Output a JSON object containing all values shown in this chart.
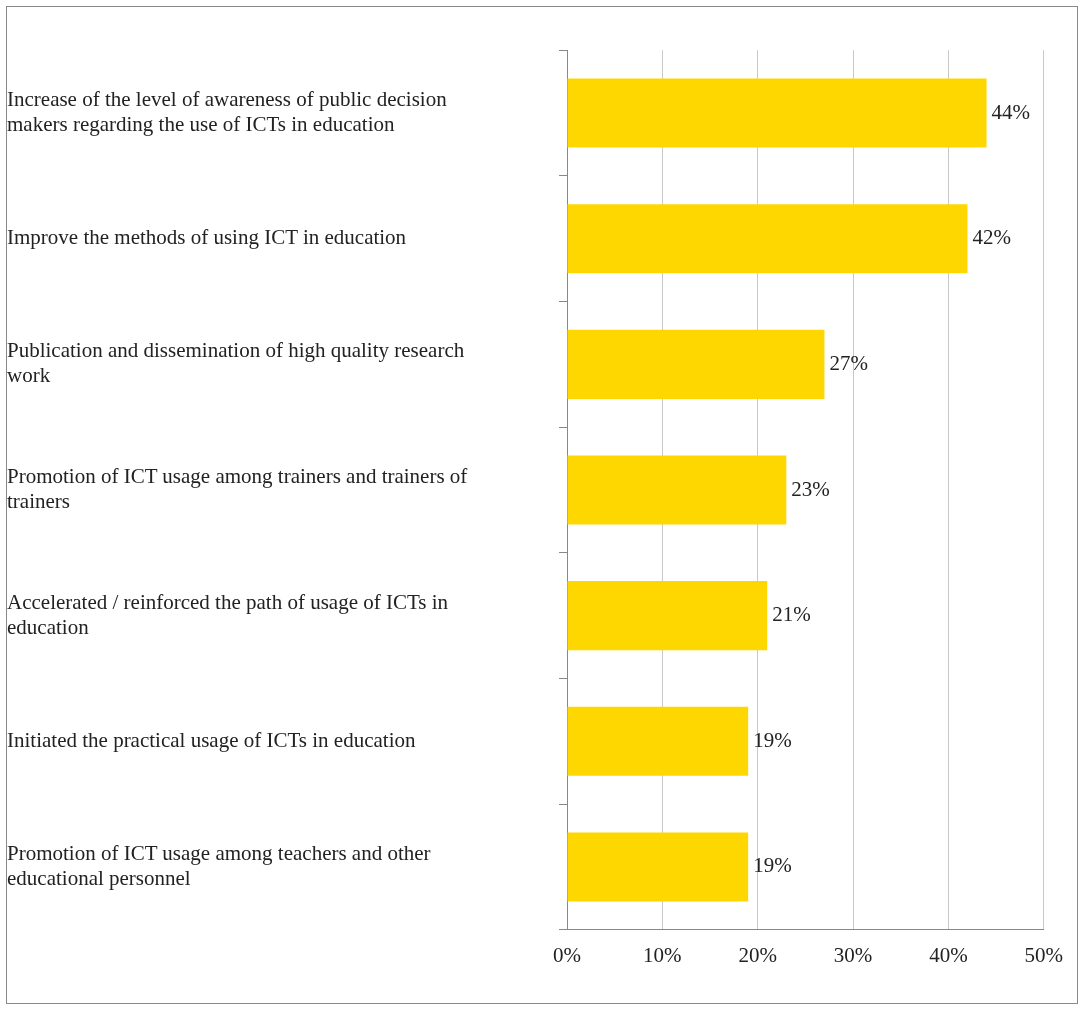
{
  "chart_data": {
    "type": "bar",
    "orientation": "horizontal",
    "categories": [
      "Increase of the level of awareness of public decision makers regarding the use of ICTs in education",
      "Improve the methods of using ICT in education",
      "Publication and dissemination of high quality research work",
      "Promotion of ICT usage among trainers and trainers of trainers",
      "Accelerated / reinforced the path of usage of ICTs in education",
      "Initiated the practical usage of ICTs in education",
      "Promotion of ICT usage among teachers and other educational personnel"
    ],
    "values": [
      44,
      42,
      27,
      23,
      21,
      19,
      19
    ],
    "value_labels": [
      "44%",
      "42%",
      "27%",
      "23%",
      "21%",
      "19%",
      "19%"
    ],
    "color": "#ffd700",
    "xlim": [
      0,
      50
    ],
    "xticks": [
      {
        "value": 0,
        "label": "0%"
      },
      {
        "value": 10,
        "label": "10%"
      },
      {
        "value": 20,
        "label": "20%"
      },
      {
        "value": 30,
        "label": "30%"
      },
      {
        "value": 40,
        "label": "40%"
      },
      {
        "value": 50,
        "label": "50%"
      }
    ],
    "grid": "x"
  }
}
